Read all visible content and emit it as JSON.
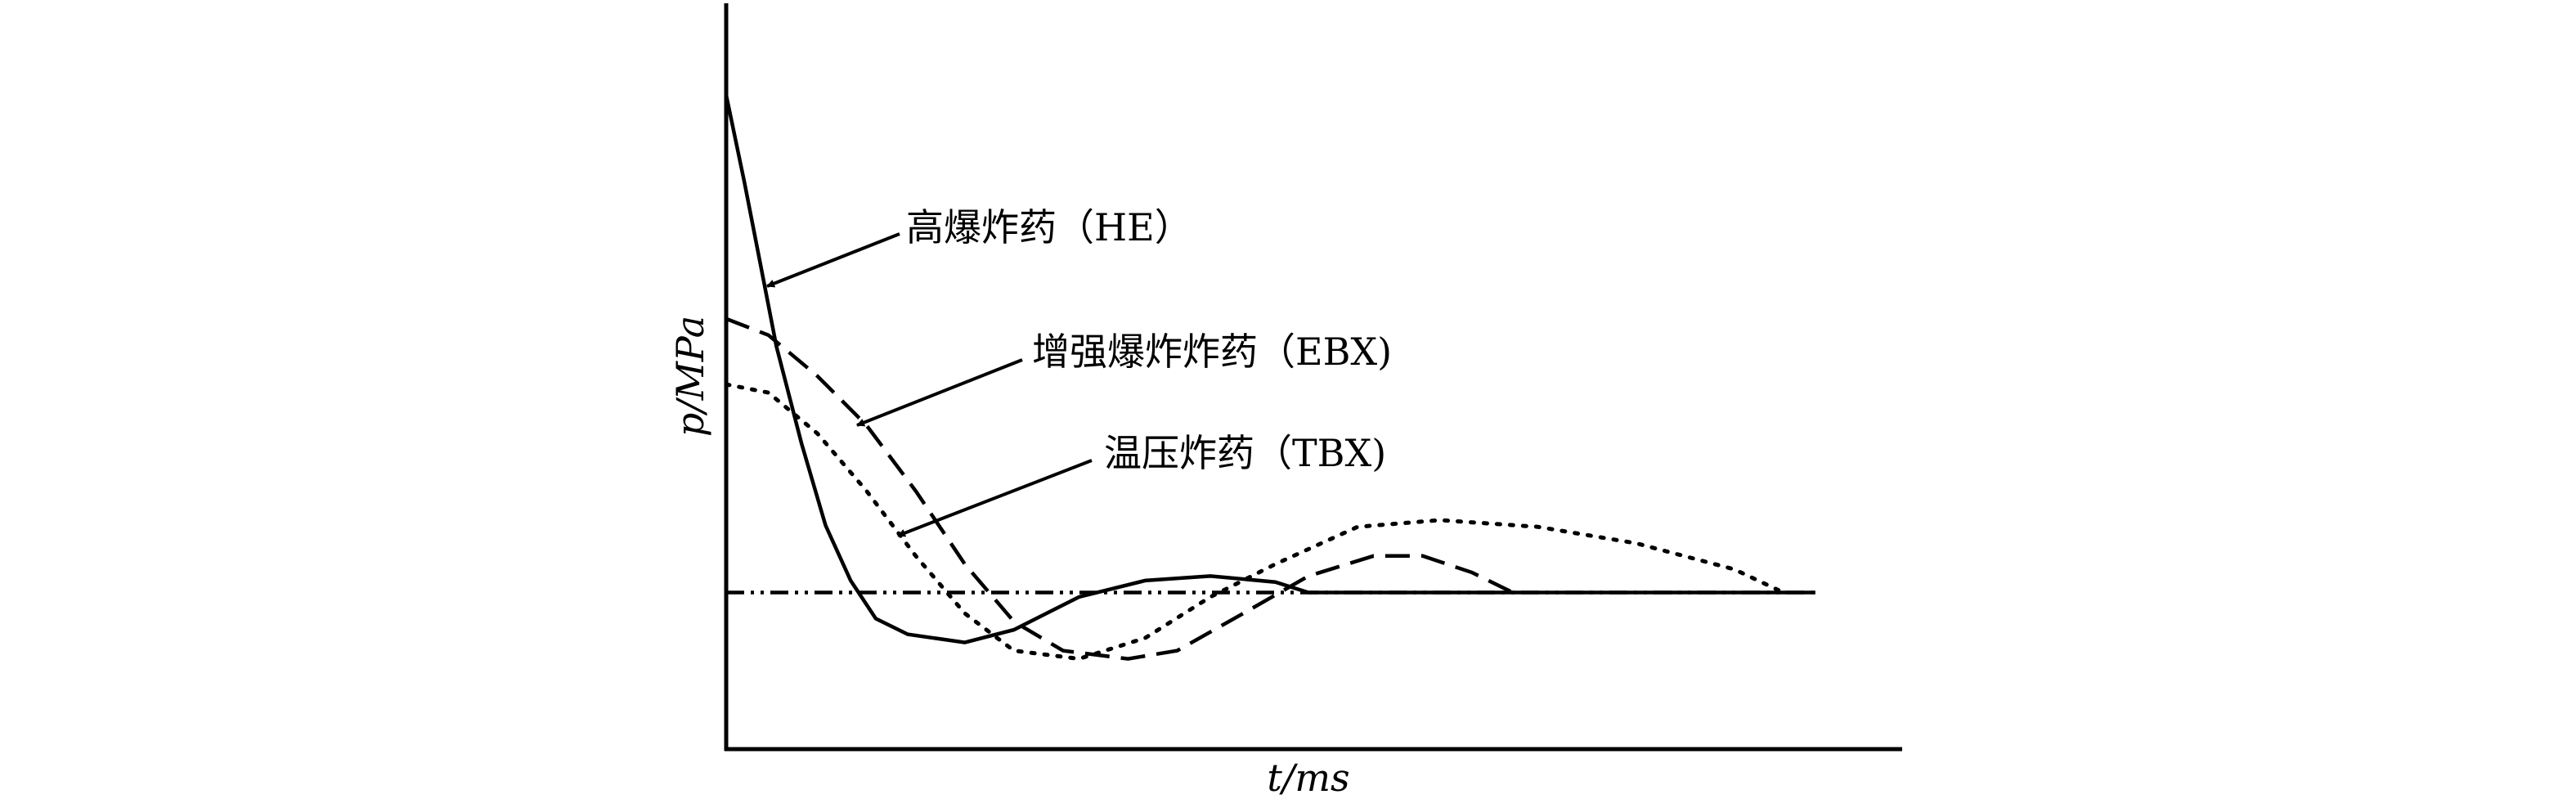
{
  "chart_data": {
    "type": "line",
    "x_label": "t/ms",
    "y_label": "p/MPa",
    "xlim": [
      0,
      103
    ],
    "ylim": [
      0,
      100
    ],
    "series": [
      {
        "name": "高爆炸药（HE）",
        "color": "#000000",
        "dash": "solid",
        "x": [
          0,
          1.6,
          3,
          4.4,
          6.6,
          8.7,
          10.9,
          13.1,
          15.9,
          20.9,
          25.2,
          30.9,
          36.7,
          42.4,
          48.1,
          51,
          95.4
        ],
        "values": [
          87.7,
          76,
          65,
          54,
          41,
          30,
          22.6,
          17.5,
          15.4,
          14.3,
          16,
          20.4,
          22.6,
          23.2,
          22.4,
          21,
          21
        ]
      },
      {
        "name": "增强爆炸炸药（EBX)",
        "color": "#000000",
        "dash": "dashed",
        "x": [
          0,
          3.7,
          8,
          12.3,
          16.6,
          20.9,
          25.2,
          29.5,
          35.2,
          39.5,
          45.3,
          51,
          56.7,
          61,
          65.3,
          68.9
        ],
        "values": [
          57.7,
          55.5,
          50,
          43.4,
          34.6,
          24.8,
          17.1,
          13.2,
          12.1,
          13.2,
          18.2,
          23.2,
          25.9,
          25.9,
          23.7,
          21
        ]
      },
      {
        "name": "温压炸药（TBX)",
        "color": "#000000",
        "dash": "dotted",
        "x": [
          0,
          3.7,
          8,
          12.3,
          16.6,
          20.9,
          25.2,
          30.9,
          36.7,
          42.4,
          48.1,
          55.3,
          62.5,
          71.1,
          79.7,
          88.3,
          92.6
        ],
        "values": [
          48.9,
          47.8,
          42.3,
          34.6,
          25.9,
          18.2,
          13.2,
          12.1,
          14.9,
          20.4,
          24.8,
          29.8,
          30.7,
          29.8,
          27.6,
          24.1,
          21
        ]
      },
      {
        "color": "#000000",
        "dash": "dashdotdot",
        "x": [
          0,
          95.4
        ],
        "values": [
          21,
          21
        ]
      }
    ]
  }
}
